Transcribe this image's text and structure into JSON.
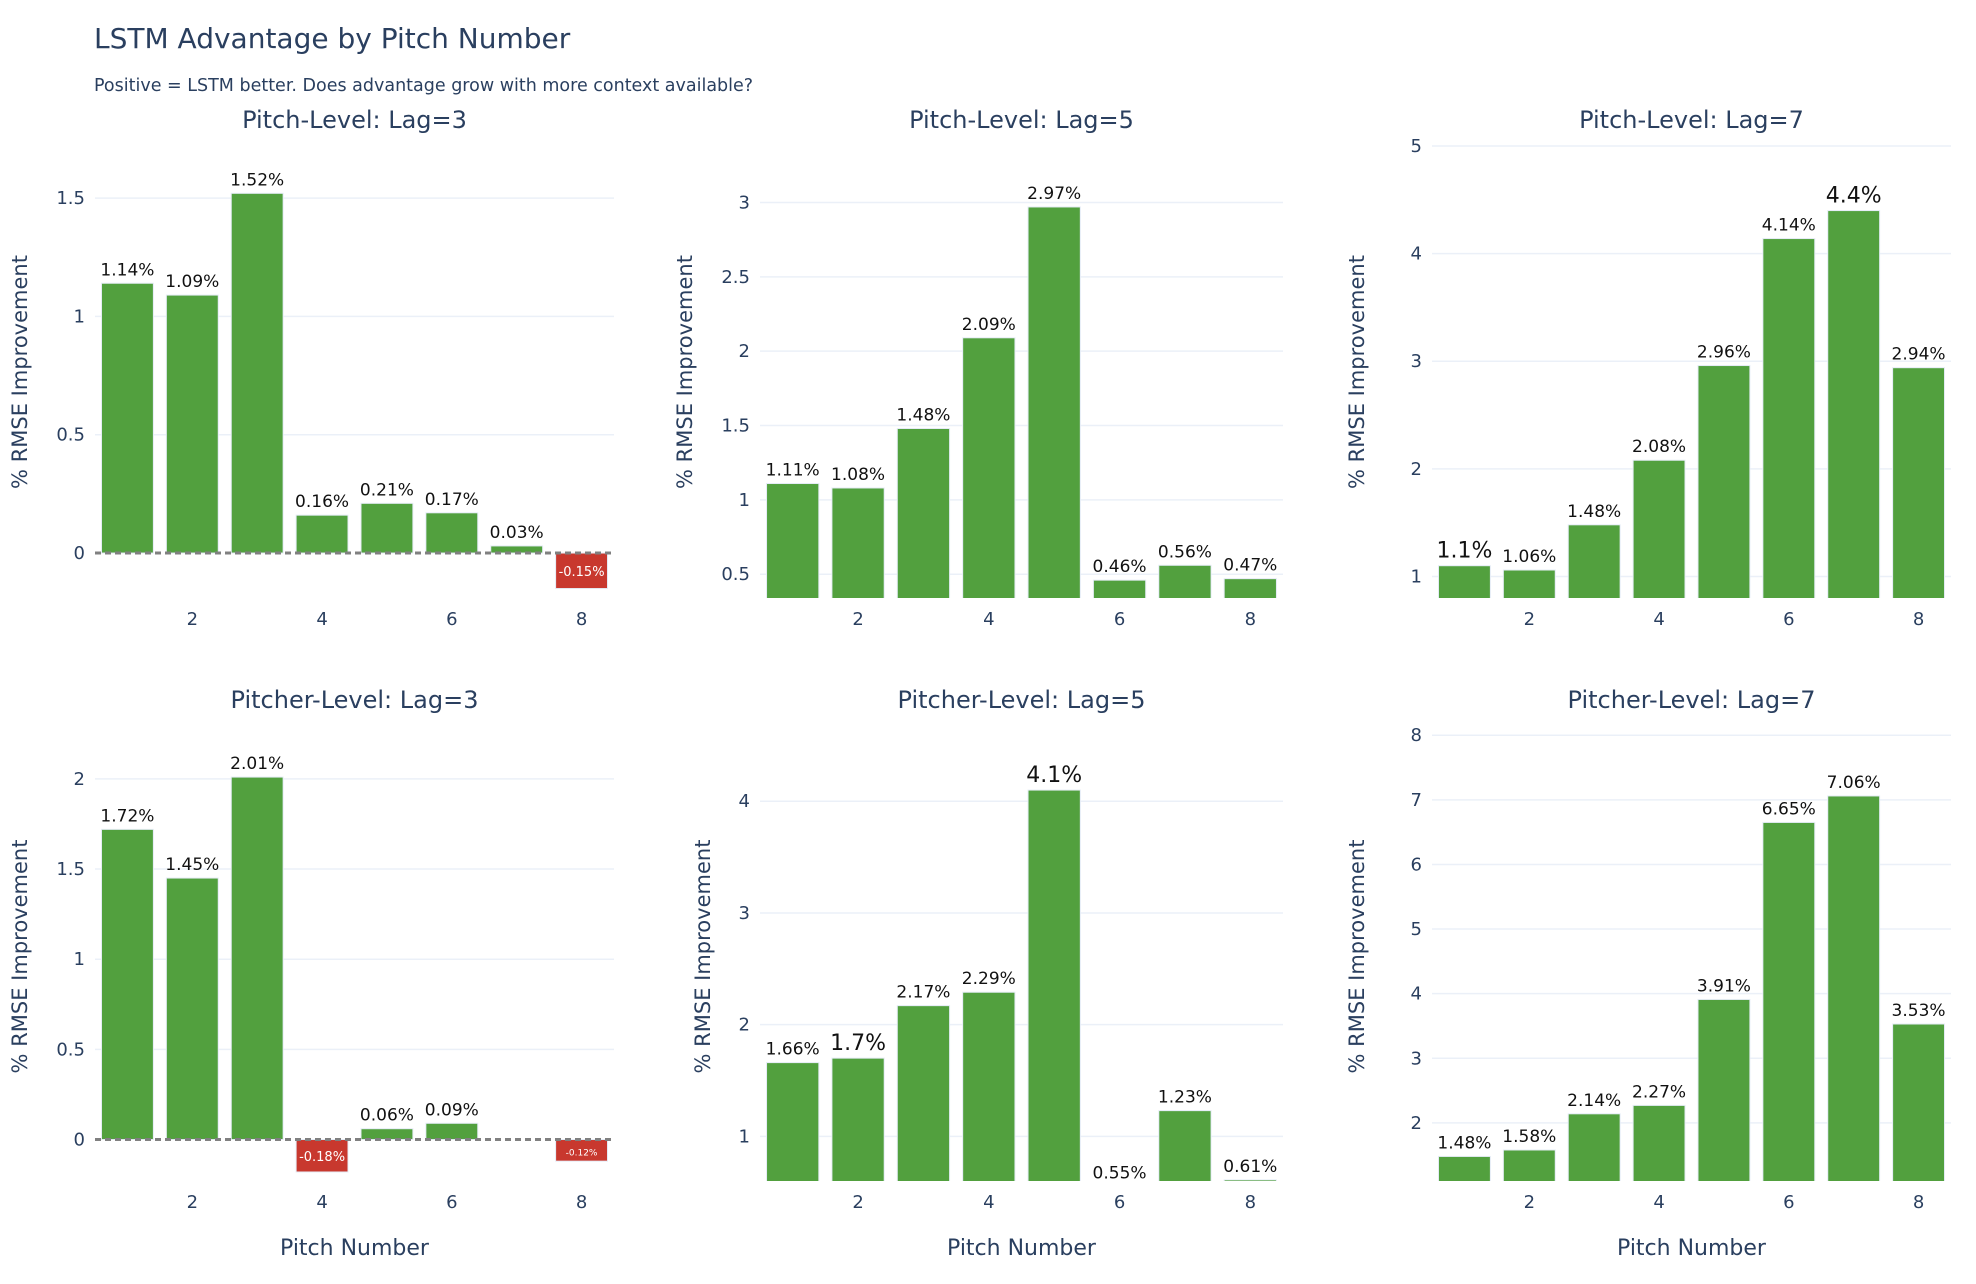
{
  "title": "LSTM Advantage by Pitch Number",
  "subtitle": "Positive = LSTM better. Does advantage grow with more context available?",
  "colors": {
    "positive": "#52a03e",
    "negative": "#c8382e",
    "text": "#2a3f5f",
    "grid": "#ebf0f8",
    "zero_line": "#808080"
  },
  "chart_data": [
    {
      "type": "bar",
      "title": "Pitch-Level: Lag=3",
      "xlabel": "",
      "ylabel": "% RMSE Improvement",
      "x": [
        1,
        2,
        3,
        4,
        5,
        6,
        7,
        8
      ],
      "values": [
        1.14,
        1.09,
        1.52,
        0.16,
        0.21,
        0.17,
        0.03,
        -0.15
      ],
      "labels": [
        "1.14%",
        "1.09%",
        "1.52%",
        "0.16%",
        "0.21%",
        "0.17%",
        "0.03%",
        "-0.15%"
      ],
      "xticks": [
        2,
        4,
        6,
        8
      ],
      "yticks": [
        0,
        0.5,
        1,
        1.5
      ],
      "ylim": [
        -0.19,
        1.72
      ],
      "zero_line": true,
      "grid": true
    },
    {
      "type": "bar",
      "title": "Pitch-Level: Lag=5",
      "xlabel": "",
      "ylabel": "% RMSE Improvement",
      "x": [
        1,
        2,
        3,
        4,
        5,
        6,
        7,
        8
      ],
      "values": [
        1.11,
        1.08,
        1.48,
        2.09,
        2.97,
        0.46,
        0.56,
        0.47
      ],
      "labels": [
        "1.11%",
        "1.08%",
        "1.48%",
        "2.09%",
        "2.97%",
        "0.46%",
        "0.56%",
        "0.47%"
      ],
      "xticks": [
        2,
        4,
        6,
        8
      ],
      "yticks": [
        0.5,
        1,
        1.5,
        2,
        2.5,
        3
      ],
      "ylim": [
        0.34,
        3.38
      ],
      "zero_line": false,
      "grid": true
    },
    {
      "type": "bar",
      "title": "Pitch-Level: Lag=7",
      "xlabel": "",
      "ylabel": "% RMSE Improvement",
      "x": [
        1,
        2,
        3,
        4,
        5,
        6,
        7,
        8
      ],
      "values": [
        1.1,
        1.06,
        1.48,
        2.08,
        2.96,
        4.14,
        4.4,
        2.94
      ],
      "labels": [
        "1.1%",
        "1.06%",
        "1.48%",
        "2.08%",
        "2.96%",
        "4.14%",
        "4.4%",
        "2.94%"
      ],
      "xticks": [
        2,
        4,
        6,
        8
      ],
      "yticks": [
        1,
        2,
        3,
        4,
        5
      ],
      "ylim": [
        0.8,
        5
      ],
      "zero_line": false,
      "grid": true
    },
    {
      "type": "bar",
      "title": "Pitcher-Level: Lag=3",
      "xlabel": "Pitch Number",
      "ylabel": "% RMSE Improvement",
      "x": [
        1,
        2,
        3,
        4,
        5,
        6,
        7,
        8
      ],
      "values": [
        1.72,
        1.45,
        2.01,
        -0.18,
        0.06,
        0.09,
        null,
        -0.12
      ],
      "labels": [
        "1.72%",
        "1.45%",
        "2.01%",
        "-0.18%",
        "0.06%",
        "0.09%",
        "",
        "-0.12%"
      ],
      "xticks": [
        2,
        4,
        6,
        8
      ],
      "yticks": [
        0,
        0.5,
        1,
        1.5,
        2
      ],
      "ylim": [
        -0.23,
        2.26
      ],
      "zero_line": true,
      "grid": true
    },
    {
      "type": "bar",
      "title": "Pitcher-Level: Lag=5",
      "xlabel": "Pitch Number",
      "ylabel": "% RMSE Improvement",
      "x": [
        1,
        2,
        3,
        4,
        5,
        6,
        7,
        8
      ],
      "values": [
        1.66,
        1.7,
        2.17,
        2.29,
        4.1,
        0.55,
        1.23,
        0.61
      ],
      "labels": [
        "1.66%",
        "1.7%",
        "2.17%",
        "2.29%",
        "4.1%",
        "0.55%",
        "1.23%",
        "0.61%"
      ],
      "xticks": [
        2,
        4,
        6,
        8
      ],
      "yticks": [
        1,
        2,
        3,
        4
      ],
      "ylim": [
        0.6,
        4.62
      ],
      "zero_line": false,
      "grid": true
    },
    {
      "type": "bar",
      "title": "Pitcher-Level: Lag=7",
      "xlabel": "Pitch Number",
      "ylabel": "% RMSE Improvement",
      "x": [
        1,
        2,
        3,
        4,
        5,
        6,
        7,
        8
      ],
      "values": [
        1.48,
        1.58,
        2.14,
        2.27,
        3.91,
        6.65,
        7.06,
        3.53
      ],
      "labels": [
        "1.48%",
        "1.58%",
        "2.14%",
        "2.27%",
        "3.91%",
        "6.65%",
        "7.06%",
        "3.53%"
      ],
      "xticks": [
        2,
        4,
        6,
        8
      ],
      "yticks": [
        2,
        3,
        4,
        5,
        6,
        7,
        8
      ],
      "ylim": [
        1.1,
        8.05
      ],
      "zero_line": false,
      "grid": true
    }
  ]
}
